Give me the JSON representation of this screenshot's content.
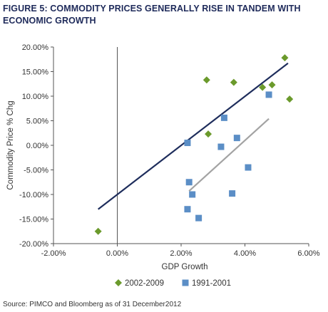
{
  "figure": {
    "title": "FIGURE 5: COMMODITY PRICES GENERALLY RISE IN TANDEM WITH ECONOMIC GROWTH",
    "source": "Source: PIMCO and Bloomberg as of 31 December2012"
  },
  "colors": {
    "series_2002_2009": "#6b9a2c",
    "series_1991_2001": "#5b8ec6",
    "trend_2002_2009": "#1e2d5c",
    "trend_1991_2001": "#a3a3a3",
    "axis": "#555555",
    "text": "#333333"
  },
  "chart_data": {
    "type": "scatter",
    "title": "FIGURE 5: COMMODITY PRICES GENERALLY RISE IN TANDEM WITH ECONOMIC GROWTH",
    "xlabel": "GDP Growth",
    "ylabel": "Commodity Price % Chg",
    "xlim": [
      -2.0,
      6.0
    ],
    "ylim": [
      -20.0,
      20.0
    ],
    "x_ticks": [
      -2.0,
      0.0,
      2.0,
      4.0,
      6.0
    ],
    "y_ticks": [
      20.0,
      15.0,
      10.0,
      5.0,
      0.0,
      -5.0,
      -10.0,
      -15.0,
      -20.0
    ],
    "x_tick_labels": [
      "-2.00%",
      "0.00%",
      "2.00%",
      "4.00%",
      "6.00%"
    ],
    "y_tick_labels": [
      "20.00%",
      "15.00%",
      "10.00%",
      "5.00%",
      "0.00%",
      "-5.00%",
      "-10.00%",
      "-15.00%",
      "-20.00%"
    ],
    "grid": false,
    "legend_position": "bottom",
    "series": [
      {
        "name": "2002-2009",
        "marker": "diamond",
        "points": [
          {
            "x": -0.6,
            "y": -17.5
          },
          {
            "x": 2.8,
            "y": 13.3
          },
          {
            "x": 2.85,
            "y": 2.3
          },
          {
            "x": 3.65,
            "y": 12.8
          },
          {
            "x": 4.55,
            "y": 11.8
          },
          {
            "x": 4.85,
            "y": 12.3
          },
          {
            "x": 5.25,
            "y": 17.8
          },
          {
            "x": 5.4,
            "y": 9.4
          }
        ],
        "trendline": [
          {
            "x": -0.6,
            "y": -13.0
          },
          {
            "x": 5.35,
            "y": 16.7
          }
        ]
      },
      {
        "name": "1991-2001",
        "marker": "square",
        "points": [
          {
            "x": 2.2,
            "y": 0.5
          },
          {
            "x": 2.25,
            "y": -7.5
          },
          {
            "x": 2.35,
            "y": -10.0
          },
          {
            "x": 2.2,
            "y": -13.0
          },
          {
            "x": 2.55,
            "y": -14.8
          },
          {
            "x": 3.25,
            "y": -0.3
          },
          {
            "x": 3.35,
            "y": 5.6
          },
          {
            "x": 3.6,
            "y": -9.8
          },
          {
            "x": 3.75,
            "y": 1.5
          },
          {
            "x": 4.1,
            "y": -4.5
          },
          {
            "x": 4.75,
            "y": 10.3
          }
        ],
        "trendline": [
          {
            "x": 2.25,
            "y": -9.3
          },
          {
            "x": 4.75,
            "y": 5.4
          }
        ]
      }
    ]
  }
}
